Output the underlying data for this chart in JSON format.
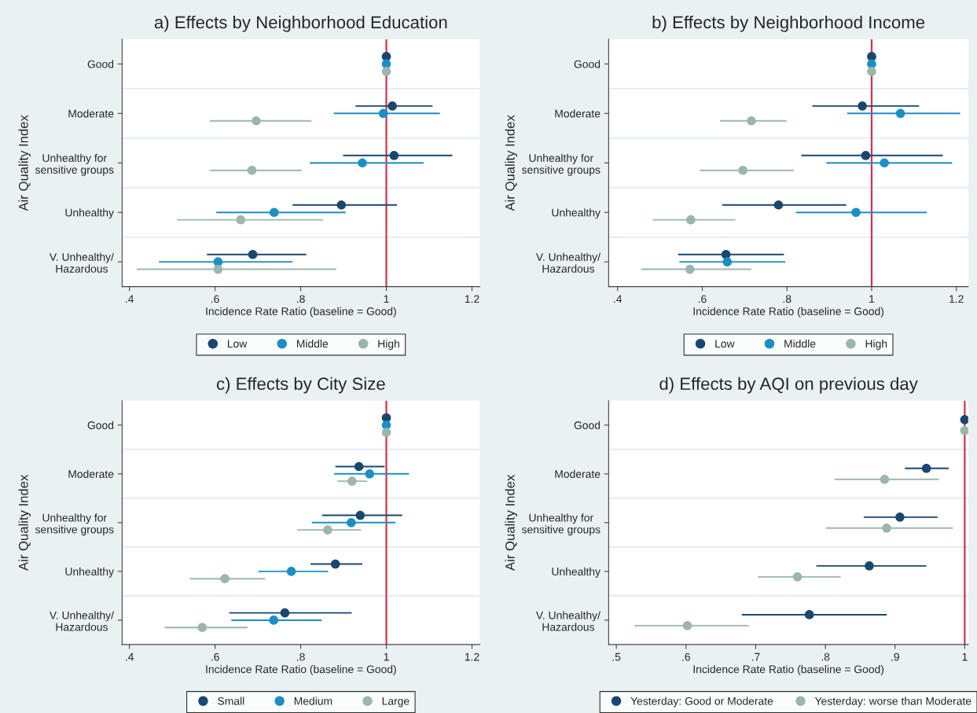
{
  "chart_data": [
    {
      "type": "scatter",
      "orientation": "horizontal",
      "title": "a) Effects by Neighborhood Education",
      "xlabel": "Incidence Rate Ratio (baseline = Good)",
      "ylabel": "Air Quality Index",
      "categories": [
        "Good",
        "Moderate",
        "Unhealthy for\nsensitive groups",
        "Unhealthy",
        "V. Unhealthy/\nHazardous"
      ],
      "xlim": [
        0.383,
        1.218
      ],
      "xticks": [
        {
          "value": 0.4,
          "label": ".4"
        },
        {
          "value": 0.6,
          "label": ".6"
        },
        {
          "value": 0.8,
          "label": ".8"
        },
        1,
        1.2
      ],
      "series": [
        {
          "name": "Low",
          "color": "#1a476f",
          "values": [
            1,
            1.014,
            1.018,
            0.895,
            0.688
          ],
          "errors": [
            null,
            [
              0.928,
              1.108
            ],
            [
              0.899,
              1.154
            ],
            [
              0.781,
              1.025
            ],
            [
              0.581,
              0.813
            ]
          ]
        },
        {
          "name": "Middle",
          "color": "#1b8fc4",
          "values": [
            1,
            0.993,
            0.944,
            0.738,
            0.607
          ],
          "errors": [
            null,
            [
              0.877,
              1.125
            ],
            [
              0.821,
              1.087
            ],
            [
              0.603,
              0.905
            ],
            [
              0.469,
              0.781
            ]
          ]
        },
        {
          "name": "High",
          "color": "#9cb6ad",
          "values": [
            1,
            0.696,
            0.686,
            0.66,
            0.607
          ],
          "errors": [
            null,
            [
              0.588,
              0.825
            ],
            [
              0.588,
              0.802
            ],
            [
              0.511,
              0.852
            ],
            [
              0.417,
              0.883
            ]
          ]
        }
      ],
      "ref_lines": [
        {
          "axis": "x",
          "value": 1,
          "color": "#d0344f"
        }
      ],
      "marker": "circle",
      "grid": "y",
      "legend": "bottom"
    },
    {
      "type": "scatter",
      "orientation": "horizontal",
      "title": "b) Effects by Neighborhood Income",
      "xlabel": "Incidence Rate Ratio (baseline = Good)",
      "ylabel": "Air Quality Index",
      "categories": [
        "Good",
        "Moderate",
        "Unhealthy for\nsensitive groups",
        "Unhealthy",
        "V. Unhealthy/\nHazardous"
      ],
      "xlim": [
        0.379,
        1.228
      ],
      "xticks": [
        {
          "value": 0.4,
          "label": ".4"
        },
        {
          "value": 0.6,
          "label": ".6"
        },
        {
          "value": 0.8,
          "label": ".8"
        },
        1,
        1.2
      ],
      "series": [
        {
          "name": "Low",
          "color": "#1a476f",
          "values": [
            1,
            0.978,
            0.986,
            0.78,
            0.656
          ],
          "errors": [
            null,
            [
              0.86,
              1.112
            ],
            [
              0.834,
              1.168
            ],
            [
              0.647,
              0.94
            ],
            [
              0.543,
              0.793
            ]
          ]
        },
        {
          "name": "Middle",
          "color": "#1b8fc4",
          "values": [
            1,
            1.068,
            1.03,
            0.963,
            0.659
          ],
          "errors": [
            null,
            [
              0.942,
              1.209
            ],
            [
              0.893,
              1.19
            ],
            [
              0.821,
              1.13
            ],
            [
              0.546,
              0.796
            ]
          ]
        },
        {
          "name": "High",
          "color": "#9cb6ad",
          "values": [
            1,
            0.716,
            0.696,
            0.573,
            0.571
          ],
          "errors": [
            null,
            [
              0.642,
              0.799
            ],
            [
              0.594,
              0.816
            ],
            [
              0.483,
              0.678
            ],
            [
              0.456,
              0.716
            ]
          ]
        }
      ],
      "ref_lines": [
        {
          "axis": "x",
          "value": 1,
          "color": "#d0344f"
        }
      ],
      "marker": "circle",
      "grid": "y",
      "legend": "bottom"
    },
    {
      "type": "scatter",
      "orientation": "horizontal",
      "title": "c) Effects by City Size",
      "xlabel": "Incidence Rate Ratio (baseline = Good)",
      "ylabel": "Air Quality Index",
      "categories": [
        "Good",
        "Moderate",
        "Unhealthy for\nsensitive groups",
        "Unhealthy",
        "V. Unhealthy/\nHazardous"
      ],
      "xlim": [
        0.383,
        1.218
      ],
      "xticks": [
        {
          "value": 0.4,
          "label": ".4"
        },
        {
          "value": 0.6,
          "label": ".6"
        },
        {
          "value": 0.8,
          "label": ".8"
        },
        1,
        1.2
      ],
      "series": [
        {
          "name": "Small",
          "color": "#1a476f",
          "values": [
            1,
            0.936,
            0.939,
            0.881,
            0.763
          ],
          "errors": [
            null,
            [
              0.881,
              0.996
            ],
            [
              0.85,
              1.037
            ],
            [
              0.823,
              0.944
            ],
            [
              0.633,
              0.919
            ]
          ]
        },
        {
          "name": "Medium",
          "color": "#1b8fc4",
          "values": [
            1,
            0.961,
            0.918,
            0.778,
            0.737
          ],
          "errors": [
            null,
            [
              0.878,
              1.053
            ],
            [
              0.826,
              1.021
            ],
            [
              0.701,
              0.864
            ],
            [
              0.638,
              0.849
            ]
          ]
        },
        {
          "name": "Large",
          "color": "#9cb6ad",
          "values": [
            1,
            0.92,
            0.863,
            0.623,
            0.57
          ],
          "errors": [
            null,
            [
              0.886,
              0.955
            ],
            [
              0.792,
              0.941
            ],
            [
              0.542,
              0.717
            ],
            [
              0.482,
              0.676
            ]
          ]
        }
      ],
      "ref_lines": [
        {
          "axis": "x",
          "value": 1,
          "color": "#d0344f"
        }
      ],
      "marker": "circle",
      "grid": "y",
      "legend": "bottom"
    },
    {
      "type": "scatter",
      "orientation": "horizontal",
      "title": "d) Effects by AQI on previous day",
      "xlabel": "Incidence Rate Ratio (baseline = Good)",
      "ylabel": "Air Quality Index",
      "categories": [
        "Good",
        "Moderate",
        "Unhealthy for\nsensitive groups",
        "Unhealthy",
        "V. Unhealthy/\nHazardous"
      ],
      "xlim": [
        0.489,
        1.005
      ],
      "xticks": [
        {
          "value": 0.5,
          "label": ".5"
        },
        {
          "value": 0.6,
          "label": ".6"
        },
        {
          "value": 0.7,
          "label": ".7"
        },
        {
          "value": 0.8,
          "label": ".8"
        },
        {
          "value": 0.9,
          "label": ".9"
        },
        1
      ],
      "series": [
        {
          "name": "Yesterday: Good or Moderate",
          "color": "#1a476f",
          "values": [
            1,
            0.945,
            0.907,
            0.863,
            0.777
          ],
          "errors": [
            null,
            [
              0.914,
              0.977
            ],
            [
              0.855,
              0.961
            ],
            [
              0.787,
              0.945
            ],
            [
              0.68,
              0.888
            ]
          ]
        },
        {
          "name": "Yesterday: worse than Moderate",
          "color": "#9cb6ad",
          "values": [
            1,
            0.885,
            0.888,
            0.76,
            0.602
          ],
          "errors": [
            null,
            [
              0.813,
              0.963
            ],
            [
              0.801,
              0.983
            ],
            [
              0.703,
              0.822
            ],
            [
              0.526,
              0.69
            ]
          ]
        }
      ],
      "ref_lines": [
        {
          "axis": "x",
          "value": 1,
          "color": "#d0344f"
        }
      ],
      "marker": "circle",
      "grid": "y",
      "legend": "bottom"
    }
  ]
}
